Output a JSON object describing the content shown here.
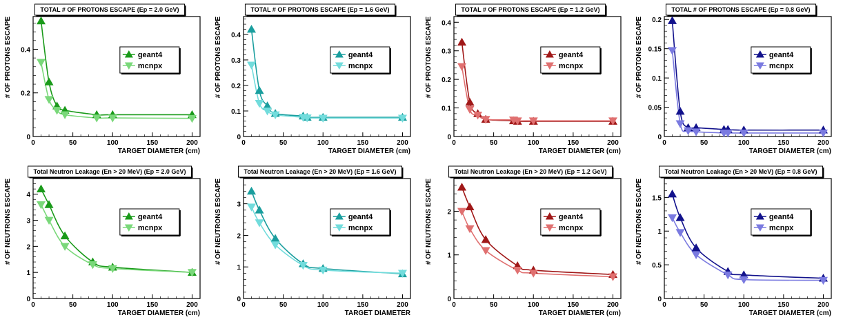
{
  "chart_data": [
    {
      "type": "line",
      "title": "TOTAL # OF PROTONS ESCAPE (Ep = 2.0 GeV)",
      "xlabel": "TARGET DIAMETER (cm)",
      "ylabel": "# OF PROTONS ESCAPE",
      "xlim": [
        0,
        210
      ],
      "ylim": [
        0,
        0.55
      ],
      "xticks": [
        0,
        50,
        100,
        150,
        200
      ],
      "xticklabels": [
        "0",
        "50",
        "100",
        "150",
        "200"
      ],
      "yticks": [
        0,
        0.2,
        0.4
      ],
      "yticklabels": [
        "0",
        "0.2",
        "0.4"
      ],
      "legend": "upper-right",
      "series": [
        {
          "name": "geant4",
          "color": "#1a9a1a",
          "marker": "up",
          "x": [
            10,
            20,
            30,
            40,
            80,
            100,
            200
          ],
          "y": [
            0.53,
            0.25,
            0.14,
            0.12,
            0.1,
            0.1,
            0.1
          ]
        },
        {
          "name": "mcnpx",
          "color": "#7ad87a",
          "marker": "down",
          "x": [
            10,
            20,
            30,
            40,
            80,
            100,
            200
          ],
          "y": [
            0.34,
            0.17,
            0.12,
            0.1,
            0.085,
            0.085,
            0.083
          ]
        }
      ]
    },
    {
      "type": "line",
      "title": "TOTAL # OF PROTONS ESCAPE (Ep = 1.6 GeV)",
      "xlabel": "TARGET DIAMETER (cm)",
      "ylabel": "# OF PROTONS ESCAPE",
      "xlim": [
        0,
        210
      ],
      "ylim": [
        0,
        0.47
      ],
      "xticks": [
        0,
        50,
        100,
        150,
        200
      ],
      "xticklabels": [
        "0",
        "50",
        "100",
        "150",
        "200"
      ],
      "yticks": [
        0,
        0.1,
        0.2,
        0.3,
        0.4
      ],
      "yticklabels": [
        "0",
        "0.1",
        "0.2",
        "0.3",
        "0.4"
      ],
      "legend": "upper-right",
      "series": [
        {
          "name": "geant4",
          "color": "#1a9e9e",
          "marker": "up",
          "x": [
            10,
            20,
            30,
            40,
            75,
            80,
            100,
            200
          ],
          "y": [
            0.42,
            0.18,
            0.12,
            0.09,
            0.08,
            0.075,
            0.075,
            0.075
          ]
        },
        {
          "name": "mcnpx",
          "color": "#72dcdc",
          "marker": "down",
          "x": [
            10,
            20,
            30,
            40,
            75,
            80,
            100,
            200
          ],
          "y": [
            0.28,
            0.13,
            0.1,
            0.085,
            0.075,
            0.073,
            0.072,
            0.072
          ]
        }
      ]
    },
    {
      "type": "line",
      "title": "TOTAL # OF PROTONS ESCAPE (Ep = 1.2 GeV)",
      "xlabel": "TARGET DIAMETER (cm)",
      "ylabel": "# OF PROTONS ESCAPE",
      "xlim": [
        0,
        210
      ],
      "ylim": [
        0,
        0.42
      ],
      "xticks": [
        0,
        50,
        100,
        150,
        200
      ],
      "xticklabels": [
        "0",
        "50",
        "100",
        "150",
        "200"
      ],
      "yticks": [
        0,
        0.1,
        0.2,
        0.3,
        0.4
      ],
      "yticklabels": [
        "0",
        "0.1",
        "0.2",
        "0.3",
        "0.4"
      ],
      "legend": "upper-right",
      "series": [
        {
          "name": "geant4",
          "color": "#a01818",
          "marker": "up",
          "x": [
            10,
            20,
            30,
            40,
            75,
            80,
            100,
            200
          ],
          "y": [
            0.33,
            0.12,
            0.08,
            0.06,
            0.055,
            0.053,
            0.053,
            0.053
          ]
        },
        {
          "name": "mcnpx",
          "color": "#e07070",
          "marker": "down",
          "x": [
            10,
            20,
            30,
            40,
            75,
            80,
            100,
            200
          ],
          "y": [
            0.245,
            0.095,
            0.075,
            0.06,
            0.058,
            0.055,
            0.055,
            0.055
          ]
        }
      ]
    },
    {
      "type": "line",
      "title": "TOTAL # OF PROTONS ESCAPE (Ep = 0.8 GeV)",
      "xlabel": "TARGET DIAMETER (cm)",
      "ylabel": "# OF PROTONS ESCAPE",
      "xlim": [
        0,
        210
      ],
      "ylim": [
        0,
        0.205
      ],
      "xticks": [
        0,
        50,
        100,
        150,
        200
      ],
      "xticklabels": [
        "0",
        "50",
        "100",
        "150",
        "200"
      ],
      "yticks": [
        0,
        0.05,
        0.1,
        0.15,
        0.2
      ],
      "yticklabels": [
        "0",
        "0.05",
        "0.1",
        "0.15",
        "0.2"
      ],
      "legend": "upper-right",
      "series": [
        {
          "name": "geant4",
          "color": "#12128c",
          "marker": "up",
          "x": [
            10,
            20,
            30,
            40,
            75,
            80,
            100,
            200
          ],
          "y": [
            0.198,
            0.043,
            0.015,
            0.015,
            0.012,
            0.012,
            0.011,
            0.011
          ]
        },
        {
          "name": "mcnpx",
          "color": "#7a7ae0",
          "marker": "down",
          "x": [
            10,
            20,
            30,
            40,
            75,
            80,
            100,
            200
          ],
          "y": [
            0.147,
            0.022,
            0.01,
            0.008,
            0.006,
            0.006,
            0.006,
            0.006
          ]
        }
      ]
    },
    {
      "type": "line",
      "title": "Total Neutron Leakage (En > 20 MeV) (Ep = 2.0 GeV)",
      "xlabel": "TARGET DIAMETER (cm)",
      "ylabel": "# OF NEUTRONS ESCAPE",
      "xlim": [
        0,
        210
      ],
      "ylim": [
        0,
        4.6
      ],
      "xticks": [
        0,
        50,
        100,
        150,
        200
      ],
      "xticklabels": [
        "0",
        "50",
        "100",
        "150",
        "200"
      ],
      "yticks": [
        0,
        1,
        2,
        3,
        4
      ],
      "yticklabels": [
        "0",
        "1",
        "2",
        "3",
        "4"
      ],
      "legend": "upper-right",
      "series": [
        {
          "name": "geant4",
          "color": "#1a9a1a",
          "marker": "up",
          "x": [
            10,
            20,
            40,
            75,
            100,
            200
          ],
          "y": [
            4.2,
            3.6,
            2.4,
            1.4,
            1.2,
            1.0
          ]
        },
        {
          "name": "mcnpx",
          "color": "#7ad87a",
          "marker": "down",
          "x": [
            10,
            20,
            40,
            75,
            100,
            200
          ],
          "y": [
            3.6,
            3.0,
            2.0,
            1.3,
            1.15,
            1.0
          ]
        }
      ]
    },
    {
      "type": "line",
      "title": "Total Neutron Leakage (En > 20 MeV) (Ep = 1.6 GeV)",
      "xlabel": "TARGET DIAMETER",
      "ylabel": "# OF NEUTRONS ESCAPE",
      "xlim": [
        0,
        210
      ],
      "ylim": [
        0,
        3.8
      ],
      "xticks": [
        0,
        50,
        100,
        150,
        200
      ],
      "xticklabels": [
        "0",
        "50",
        "100",
        "150",
        "200"
      ],
      "yticks": [
        0,
        1,
        2,
        3
      ],
      "yticklabels": [
        "0",
        "1",
        "2",
        "3"
      ],
      "legend": "upper-right",
      "series": [
        {
          "name": "geant4",
          "color": "#1a9e9e",
          "marker": "up",
          "x": [
            10,
            20,
            40,
            75,
            100,
            200
          ],
          "y": [
            3.4,
            2.8,
            1.9,
            1.1,
            0.95,
            0.78
          ]
        },
        {
          "name": "mcnpx",
          "color": "#72dcdc",
          "marker": "down",
          "x": [
            10,
            20,
            40,
            75,
            100,
            200
          ],
          "y": [
            2.9,
            2.4,
            1.7,
            1.05,
            0.9,
            0.8
          ]
        }
      ]
    },
    {
      "type": "line",
      "title": "Total Neutron Leakage (En > 20 MeV) (Ep = 1.2 GeV)",
      "xlabel": "TARGET DIAMETER (cm)",
      "ylabel": "# OF NEUTRONS ESCAPE",
      "xlim": [
        0,
        210
      ],
      "ylim": [
        0,
        2.75
      ],
      "xticks": [
        0,
        50,
        100,
        150,
        200
      ],
      "xticklabels": [
        "0",
        "50",
        "100",
        "150",
        "200"
      ],
      "yticks": [
        0,
        1,
        2
      ],
      "yticklabels": [
        "0",
        "1",
        "2"
      ],
      "legend": "upper-right",
      "series": [
        {
          "name": "geant4",
          "color": "#a01818",
          "marker": "up",
          "x": [
            10,
            20,
            40,
            80,
            100,
            200
          ],
          "y": [
            2.55,
            2.1,
            1.35,
            0.75,
            0.65,
            0.55
          ]
        },
        {
          "name": "mcnpx",
          "color": "#e07070",
          "marker": "down",
          "x": [
            10,
            20,
            40,
            80,
            100,
            200
          ],
          "y": [
            2.0,
            1.6,
            1.1,
            0.65,
            0.58,
            0.5
          ]
        }
      ]
    },
    {
      "type": "line",
      "title": "Total Neutron Leakage (En > 20 MeV) (Ep = 0.8 GeV)",
      "xlabel": "TARGET DIAMETER (cm)",
      "ylabel": "# OF NEUTRONS ESCAPE",
      "xlim": [
        0,
        210
      ],
      "ylim": [
        0,
        1.78
      ],
      "xticks": [
        0,
        50,
        100,
        150,
        200
      ],
      "xticklabels": [
        "0",
        "50",
        "100",
        "150",
        "200"
      ],
      "yticks": [
        0,
        0.5,
        1,
        1.5
      ],
      "yticklabels": [
        "0",
        "0.5",
        "1",
        "1.5"
      ],
      "legend": "upper-right",
      "series": [
        {
          "name": "geant4",
          "color": "#12128c",
          "marker": "up",
          "x": [
            10,
            20,
            40,
            80,
            100,
            200
          ],
          "y": [
            1.55,
            1.2,
            0.75,
            0.4,
            0.35,
            0.3
          ]
        },
        {
          "name": "mcnpx",
          "color": "#7a7ae0",
          "marker": "down",
          "x": [
            10,
            20,
            40,
            80,
            100,
            200
          ],
          "y": [
            1.2,
            0.98,
            0.65,
            0.35,
            0.28,
            0.27
          ]
        }
      ]
    }
  ]
}
